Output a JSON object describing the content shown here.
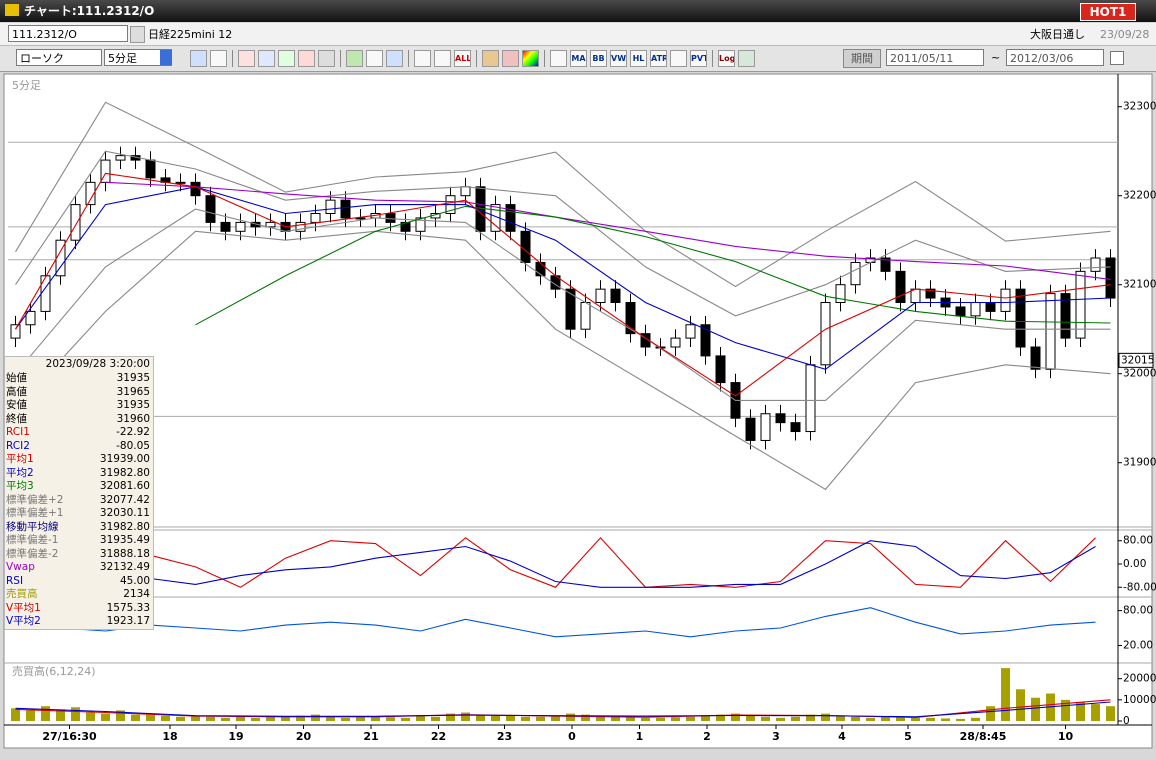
{
  "window": {
    "title": "チャート:111.2312/O",
    "badge": "HOT1"
  },
  "toolbar": {
    "symbol": "111.2312/O",
    "name": "日経225mini 12",
    "market": "大阪日通し",
    "date": "23/09/28",
    "chart_style": "ローソク",
    "interval": "5分足",
    "buttons": [
      "ALL",
      "MA",
      "BB",
      "VWAP",
      "HL",
      "ATR",
      "PVT",
      "Log"
    ],
    "period_label": "期間",
    "from": "2011/05/11",
    "sep": "~",
    "to": "2012/03/06"
  },
  "info": {
    "time": "2023/09/28 3:20:00",
    "rows": [
      {
        "label": "始値",
        "value": "31935",
        "color": "#000000"
      },
      {
        "label": "高値",
        "value": "31965",
        "color": "#000000"
      },
      {
        "label": "安値",
        "value": "31935",
        "color": "#000000"
      },
      {
        "label": "終値",
        "value": "31960",
        "color": "#000000"
      },
      {
        "label": "RCI1",
        "value": "-22.92",
        "color": "#d00000"
      },
      {
        "label": "RCI2",
        "value": "-80.05",
        "color": "#0000cc"
      },
      {
        "label": "平均1",
        "value": "31939.00",
        "color": "#d00000"
      },
      {
        "label": "平均2",
        "value": "31982.80",
        "color": "#0000cc"
      },
      {
        "label": "平均3",
        "value": "32081.60",
        "color": "#007700"
      },
      {
        "label": "標準偏差+2",
        "value": "32077.42",
        "color": "#777777"
      },
      {
        "label": "標準偏差+1",
        "value": "32030.11",
        "color": "#777777"
      },
      {
        "label": "移動平均線",
        "value": "31982.80",
        "color": "#000080"
      },
      {
        "label": "標準偏差-1",
        "value": "31935.49",
        "color": "#777777"
      },
      {
        "label": "標準偏差-2",
        "value": "31888.18",
        "color": "#777777"
      },
      {
        "label": "Vwap",
        "value": "32132.49",
        "color": "#9900cc"
      },
      {
        "label": "RSI",
        "value": "45.00",
        "color": "#0000cc"
      },
      {
        "label": "売買高",
        "value": "2134",
        "color": "#a09a00"
      },
      {
        "label": "V平均1",
        "value": "1575.33",
        "color": "#d00000"
      },
      {
        "label": "V平均2",
        "value": "1923.17",
        "color": "#0000cc"
      }
    ]
  },
  "chart_data": [
    {
      "type": "candlestick",
      "label": "5分足",
      "up_color": "#ffffff",
      "down_color": "#000000",
      "open": [
        32040,
        32055,
        32070,
        32110,
        32150,
        32190,
        32215,
        32240,
        32245,
        32240,
        32220,
        32215,
        32215,
        32200,
        32170,
        32160,
        32170,
        32165,
        32170,
        32160,
        32170,
        32180,
        32195,
        32175,
        32175,
        32180,
        32170,
        32160,
        32175,
        32180,
        32200,
        32210,
        32160,
        32190,
        32160,
        32125,
        32110,
        32095,
        32050,
        32080,
        32095,
        32080,
        32045,
        32030,
        32030,
        32040,
        32055,
        32020,
        31990,
        31950,
        31925,
        31955,
        31945,
        31935,
        32010,
        32080,
        32100,
        32125,
        32130,
        32115,
        32080,
        32095,
        32085,
        32075,
        32065,
        32080,
        32070,
        32095,
        32030,
        32005,
        32090,
        32040,
        32115,
        32130
      ],
      "high": [
        32065,
        32080,
        32120,
        32160,
        32200,
        32225,
        32250,
        32255,
        32255,
        32250,
        32230,
        32225,
        32225,
        32210,
        32180,
        32180,
        32180,
        32180,
        32180,
        32180,
        32190,
        32205,
        32205,
        32185,
        32190,
        32190,
        32180,
        32185,
        32190,
        32210,
        32220,
        32220,
        32200,
        32200,
        32170,
        32135,
        32120,
        32105,
        32090,
        32105,
        32105,
        32090,
        32055,
        32040,
        32050,
        32065,
        32065,
        32030,
        32000,
        31960,
        31965,
        31965,
        31955,
        32020,
        32090,
        32110,
        32135,
        32140,
        32140,
        32125,
        32105,
        32105,
        32095,
        32085,
        32090,
        32090,
        32105,
        32105,
        32040,
        32100,
        32100,
        32125,
        32140,
        32140
      ],
      "low": [
        32030,
        32045,
        32060,
        32100,
        32140,
        32180,
        32205,
        32230,
        32230,
        32210,
        32205,
        32205,
        32190,
        32160,
        32150,
        32150,
        32155,
        32155,
        32150,
        32150,
        32160,
        32170,
        32165,
        32165,
        32165,
        32160,
        32150,
        32150,
        32165,
        32170,
        32190,
        32150,
        32150,
        32150,
        32115,
        32100,
        32085,
        32040,
        32040,
        32070,
        32070,
        32035,
        32020,
        32020,
        32020,
        32030,
        32010,
        31980,
        31940,
        31915,
        31915,
        31935,
        31925,
        31925,
        32000,
        32070,
        32090,
        32115,
        32105,
        32070,
        32070,
        32075,
        32065,
        32055,
        32055,
        32060,
        32060,
        32020,
        31995,
        31995,
        32030,
        32030,
        32105,
        32075
      ],
      "close": [
        32055,
        32070,
        32110,
        32150,
        32190,
        32215,
        32240,
        32245,
        32240,
        32220,
        32215,
        32215,
        32200,
        32170,
        32160,
        32170,
        32165,
        32170,
        32160,
        32170,
        32180,
        32195,
        32175,
        32175,
        32180,
        32170,
        32160,
        32175,
        32180,
        32200,
        32210,
        32160,
        32190,
        32160,
        32125,
        32110,
        32095,
        32050,
        32080,
        32095,
        32080,
        32045,
        32030,
        32030,
        32040,
        32055,
        32020,
        31990,
        31950,
        31925,
        31955,
        31945,
        31935,
        32010,
        32080,
        32100,
        32125,
        32130,
        32115,
        32080,
        32095,
        32085,
        32075,
        32065,
        32080,
        32070,
        32095,
        32030,
        32005,
        32090,
        32040,
        32115,
        32130,
        32085
      ],
      "xlim": [
        -0.5,
        73.5
      ],
      "ylim": [
        31830,
        32330
      ],
      "yticks": [
        31900,
        32000,
        32100,
        32200,
        32300
      ],
      "levels": [
        32260,
        32165,
        32128,
        31952
      ],
      "last_price": 32015,
      "series": [
        {
          "color": "#888888",
          "x": [
            0,
            6,
            12,
            18,
            24,
            30,
            36,
            42,
            48,
            54,
            60,
            66,
            73
          ],
          "values": [
            32137,
            32305,
            32255,
            32204,
            32221,
            32227,
            32249,
            32160,
            32098,
            32160,
            32216,
            32149,
            32160
          ]
        },
        {
          "color": "#888888",
          "x": [
            0,
            6,
            12,
            18,
            24,
            30,
            36,
            42,
            48,
            54,
            60,
            66,
            73
          ],
          "values": [
            32100,
            32250,
            32230,
            32195,
            32205,
            32210,
            32200,
            32120,
            32065,
            32100,
            32150,
            32115,
            32120
          ]
        },
        {
          "color": "#888888",
          "x": [
            0,
            6,
            12,
            18,
            24,
            30,
            36,
            42,
            48,
            54,
            60,
            66,
            73
          ],
          "values": [
            32000,
            32120,
            32185,
            32160,
            32175,
            32170,
            32100,
            32040,
            31970,
            31970,
            32060,
            32050,
            32050
          ]
        },
        {
          "color": "#888888",
          "x": [
            0,
            6,
            12,
            18,
            24,
            30,
            36,
            42,
            48,
            54,
            60,
            66,
            73
          ],
          "values": [
            31960,
            32070,
            32160,
            32150,
            32160,
            32150,
            32050,
            31990,
            31930,
            31870,
            31990,
            32010,
            32000
          ]
        },
        {
          "color": "#9900cc",
          "x": [
            0,
            6,
            12,
            18,
            24,
            30,
            36,
            42,
            48,
            54,
            60,
            66,
            73
          ],
          "values": [
            null,
            32215,
            32210,
            32202,
            32195,
            32193,
            32176,
            32160,
            32143,
            32132,
            32126,
            32121,
            32106
          ]
        },
        {
          "color": "#007700",
          "x": [
            0,
            6,
            12,
            18,
            24,
            30,
            36,
            42,
            48,
            54,
            60,
            66,
            73
          ],
          "values": [
            null,
            null,
            32055,
            32110,
            32160,
            32188,
            32176,
            32154,
            32126,
            32087,
            32070,
            32059,
            32057
          ]
        },
        {
          "color": "#0000cc",
          "x": [
            0,
            6,
            12,
            18,
            24,
            30,
            36,
            42,
            48,
            54,
            60,
            66,
            73
          ],
          "values": [
            32050,
            32190,
            32210,
            32180,
            32190,
            32190,
            32150,
            32080,
            32035,
            32005,
            32080,
            32080,
            32085
          ]
        },
        {
          "color": "#dd0000",
          "x": [
            0,
            6,
            12,
            18,
            24,
            30,
            36,
            42,
            48,
            54,
            60,
            66,
            73
          ],
          "values": [
            32050,
            32225,
            32210,
            32165,
            32178,
            32195,
            32110,
            32040,
            31975,
            32050,
            32095,
            32085,
            32100
          ]
        }
      ]
    },
    {
      "type": "line",
      "xlim": [
        -0.5,
        73.5
      ],
      "ylim": [
        -110,
        110
      ],
      "yticks": [
        {
          "value": 80,
          "label": "80.00"
        },
        {
          "value": 0,
          "label": "0.00"
        },
        {
          "value": -80,
          "label": "-80.00"
        }
      ],
      "x": [
        0,
        3,
        6,
        9,
        12,
        15,
        18,
        21,
        24,
        27,
        30,
        33,
        36,
        39,
        42,
        45,
        48,
        51,
        54,
        57,
        60,
        63,
        66,
        69,
        72
      ],
      "series": [
        {
          "color": "#dd0000",
          "values": [
            90,
            -30,
            80,
            30,
            -10,
            -80,
            20,
            80,
            70,
            -40,
            90,
            -20,
            -80,
            90,
            -80,
            -70,
            -80,
            -60,
            80,
            70,
            -70,
            -80,
            80,
            -60,
            90
          ]
        },
        {
          "color": "#0000cc",
          "values": [
            75,
            40,
            -10,
            -50,
            -70,
            -40,
            -20,
            -10,
            20,
            40,
            60,
            10,
            -60,
            -80,
            -80,
            -80,
            -70,
            -70,
            0,
            80,
            60,
            -40,
            -50,
            -30,
            60
          ]
        }
      ]
    },
    {
      "type": "line",
      "xlim": [
        -0.5,
        73.5
      ],
      "ylim": [
        -5,
        100
      ],
      "yticks": [
        {
          "value": 80,
          "label": "80.00"
        },
        {
          "value": 20,
          "label": "20.00"
        }
      ],
      "x": [
        0,
        3,
        6,
        9,
        12,
        15,
        18,
        21,
        24,
        27,
        30,
        33,
        36,
        39,
        42,
        45,
        48,
        51,
        54,
        57,
        60,
        63,
        66,
        69,
        72
      ],
      "series": [
        {
          "color": "#0055dd",
          "values": [
            60,
            50,
            45,
            55,
            50,
            45,
            55,
            60,
            55,
            45,
            65,
            50,
            35,
            40,
            45,
            35,
            45,
            50,
            70,
            85,
            60,
            40,
            45,
            55,
            60
          ]
        }
      ]
    },
    {
      "type": "bar",
      "label": "売買高(6,12,24)",
      "color": "#a8a000",
      "xlim": [
        -0.5,
        73.5
      ],
      "ylim": [
        0,
        26000
      ],
      "yticks": [
        0,
        10000,
        20000
      ],
      "values": [
        6000,
        5000,
        7000,
        5500,
        6500,
        4000,
        3500,
        5000,
        3000,
        3000,
        2500,
        2000,
        2500,
        2000,
        1500,
        2000,
        1500,
        2500,
        2000,
        2500,
        3000,
        2000,
        1500,
        2000,
        2000,
        1800,
        1500,
        2500,
        2000,
        3500,
        4000,
        3000,
        2500,
        2500,
        2000,
        2000,
        2500,
        3500,
        3000,
        2500,
        2000,
        2000,
        1500,
        1500,
        1800,
        2000,
        2500,
        3000,
        3500,
        2500,
        2000,
        1500,
        2000,
        3000,
        3500,
        2500,
        2000,
        1500,
        2000,
        1800,
        1500,
        1500,
        1200,
        1000,
        1500,
        7000,
        25000,
        15000,
        11000,
        13000,
        10000,
        9000,
        8000,
        7000
      ],
      "xticks": [
        {
          "value": 3.6,
          "label": "27/16:30"
        },
        {
          "value": 10.3,
          "label": "18"
        },
        {
          "value": 14.7,
          "label": "19"
        },
        {
          "value": 19.2,
          "label": "20"
        },
        {
          "value": 23.7,
          "label": "21"
        },
        {
          "value": 28.2,
          "label": "22"
        },
        {
          "value": 32.6,
          "label": "23"
        },
        {
          "value": 37.1,
          "label": "0"
        },
        {
          "value": 41.6,
          "label": "1"
        },
        {
          "value": 46.1,
          "label": "2"
        },
        {
          "value": 50.7,
          "label": "3"
        },
        {
          "value": 55.1,
          "label": "4"
        },
        {
          "value": 59.5,
          "label": "5"
        },
        {
          "value": 64.5,
          "label": "28/8:45"
        },
        {
          "value": 70.0,
          "label": "10"
        }
      ],
      "series": [
        {
          "color": "#dd0000",
          "x": [
            0,
            6,
            12,
            18,
            24,
            30,
            36,
            42,
            48,
            54,
            60,
            66,
            73
          ],
          "values": [
            5500,
            4000,
            2300,
            2000,
            2000,
            3000,
            2300,
            1800,
            2800,
            2600,
            1700,
            6000,
            10000
          ]
        },
        {
          "color": "#0000cc",
          "x": [
            0,
            6,
            12,
            18,
            24,
            30,
            36,
            42,
            48,
            54,
            60,
            66,
            73
          ],
          "values": [
            6000,
            4500,
            2500,
            2200,
            2200,
            2800,
            2500,
            2300,
            2600,
            2500,
            2000,
            5000,
            9000
          ]
        }
      ]
    }
  ]
}
